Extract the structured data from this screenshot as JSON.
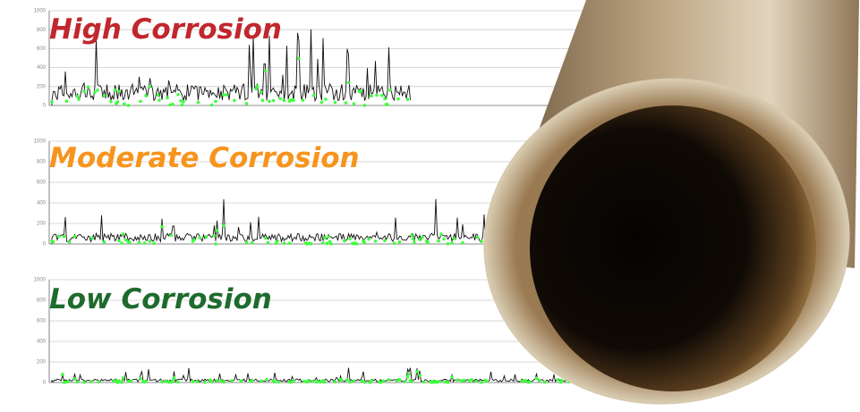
{
  "panels": [
    {
      "label": "High Corrosion",
      "yticks": [
        "1000",
        "800",
        "600",
        "400",
        "200",
        "0"
      ]
    },
    {
      "label": "Moderate Corrosion",
      "yticks": [
        "1000",
        "800",
        "600",
        "400",
        "200",
        "0"
      ]
    },
    {
      "label": "Low Corrosion",
      "yticks": [
        "1000",
        "800",
        "600",
        "400",
        "200",
        "0"
      ]
    }
  ]
}
